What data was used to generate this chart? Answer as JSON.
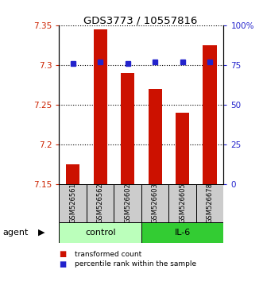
{
  "title": "GDS3773 / 10557816",
  "categories": [
    "GSM526561",
    "GSM526562",
    "GSM526602",
    "GSM526603",
    "GSM526605",
    "GSM526678"
  ],
  "bar_values": [
    7.175,
    7.345,
    7.29,
    7.27,
    7.24,
    7.325
  ],
  "dot_values": [
    76,
    77,
    76,
    77,
    77,
    77
  ],
  "ylim_left": [
    7.15,
    7.35
  ],
  "ylim_right": [
    0,
    100
  ],
  "yticks_left": [
    7.15,
    7.2,
    7.25,
    7.3,
    7.35
  ],
  "yticks_right": [
    0,
    25,
    50,
    75,
    100
  ],
  "ytick_labels_right": [
    "0",
    "25",
    "50",
    "75",
    "100%"
  ],
  "bar_color": "#cc1100",
  "dot_color": "#2222cc",
  "bar_bottom": 7.15,
  "control_color": "#bbffbb",
  "il6_color": "#33cc33",
  "agent_label": "agent",
  "control_label": "control",
  "il6_label": "IL-6",
  "legend_bar_label": "transformed count",
  "legend_dot_label": "percentile rank within the sample",
  "left_tick_color": "#cc2200",
  "right_tick_color": "#2222cc",
  "label_area_color": "#cccccc"
}
